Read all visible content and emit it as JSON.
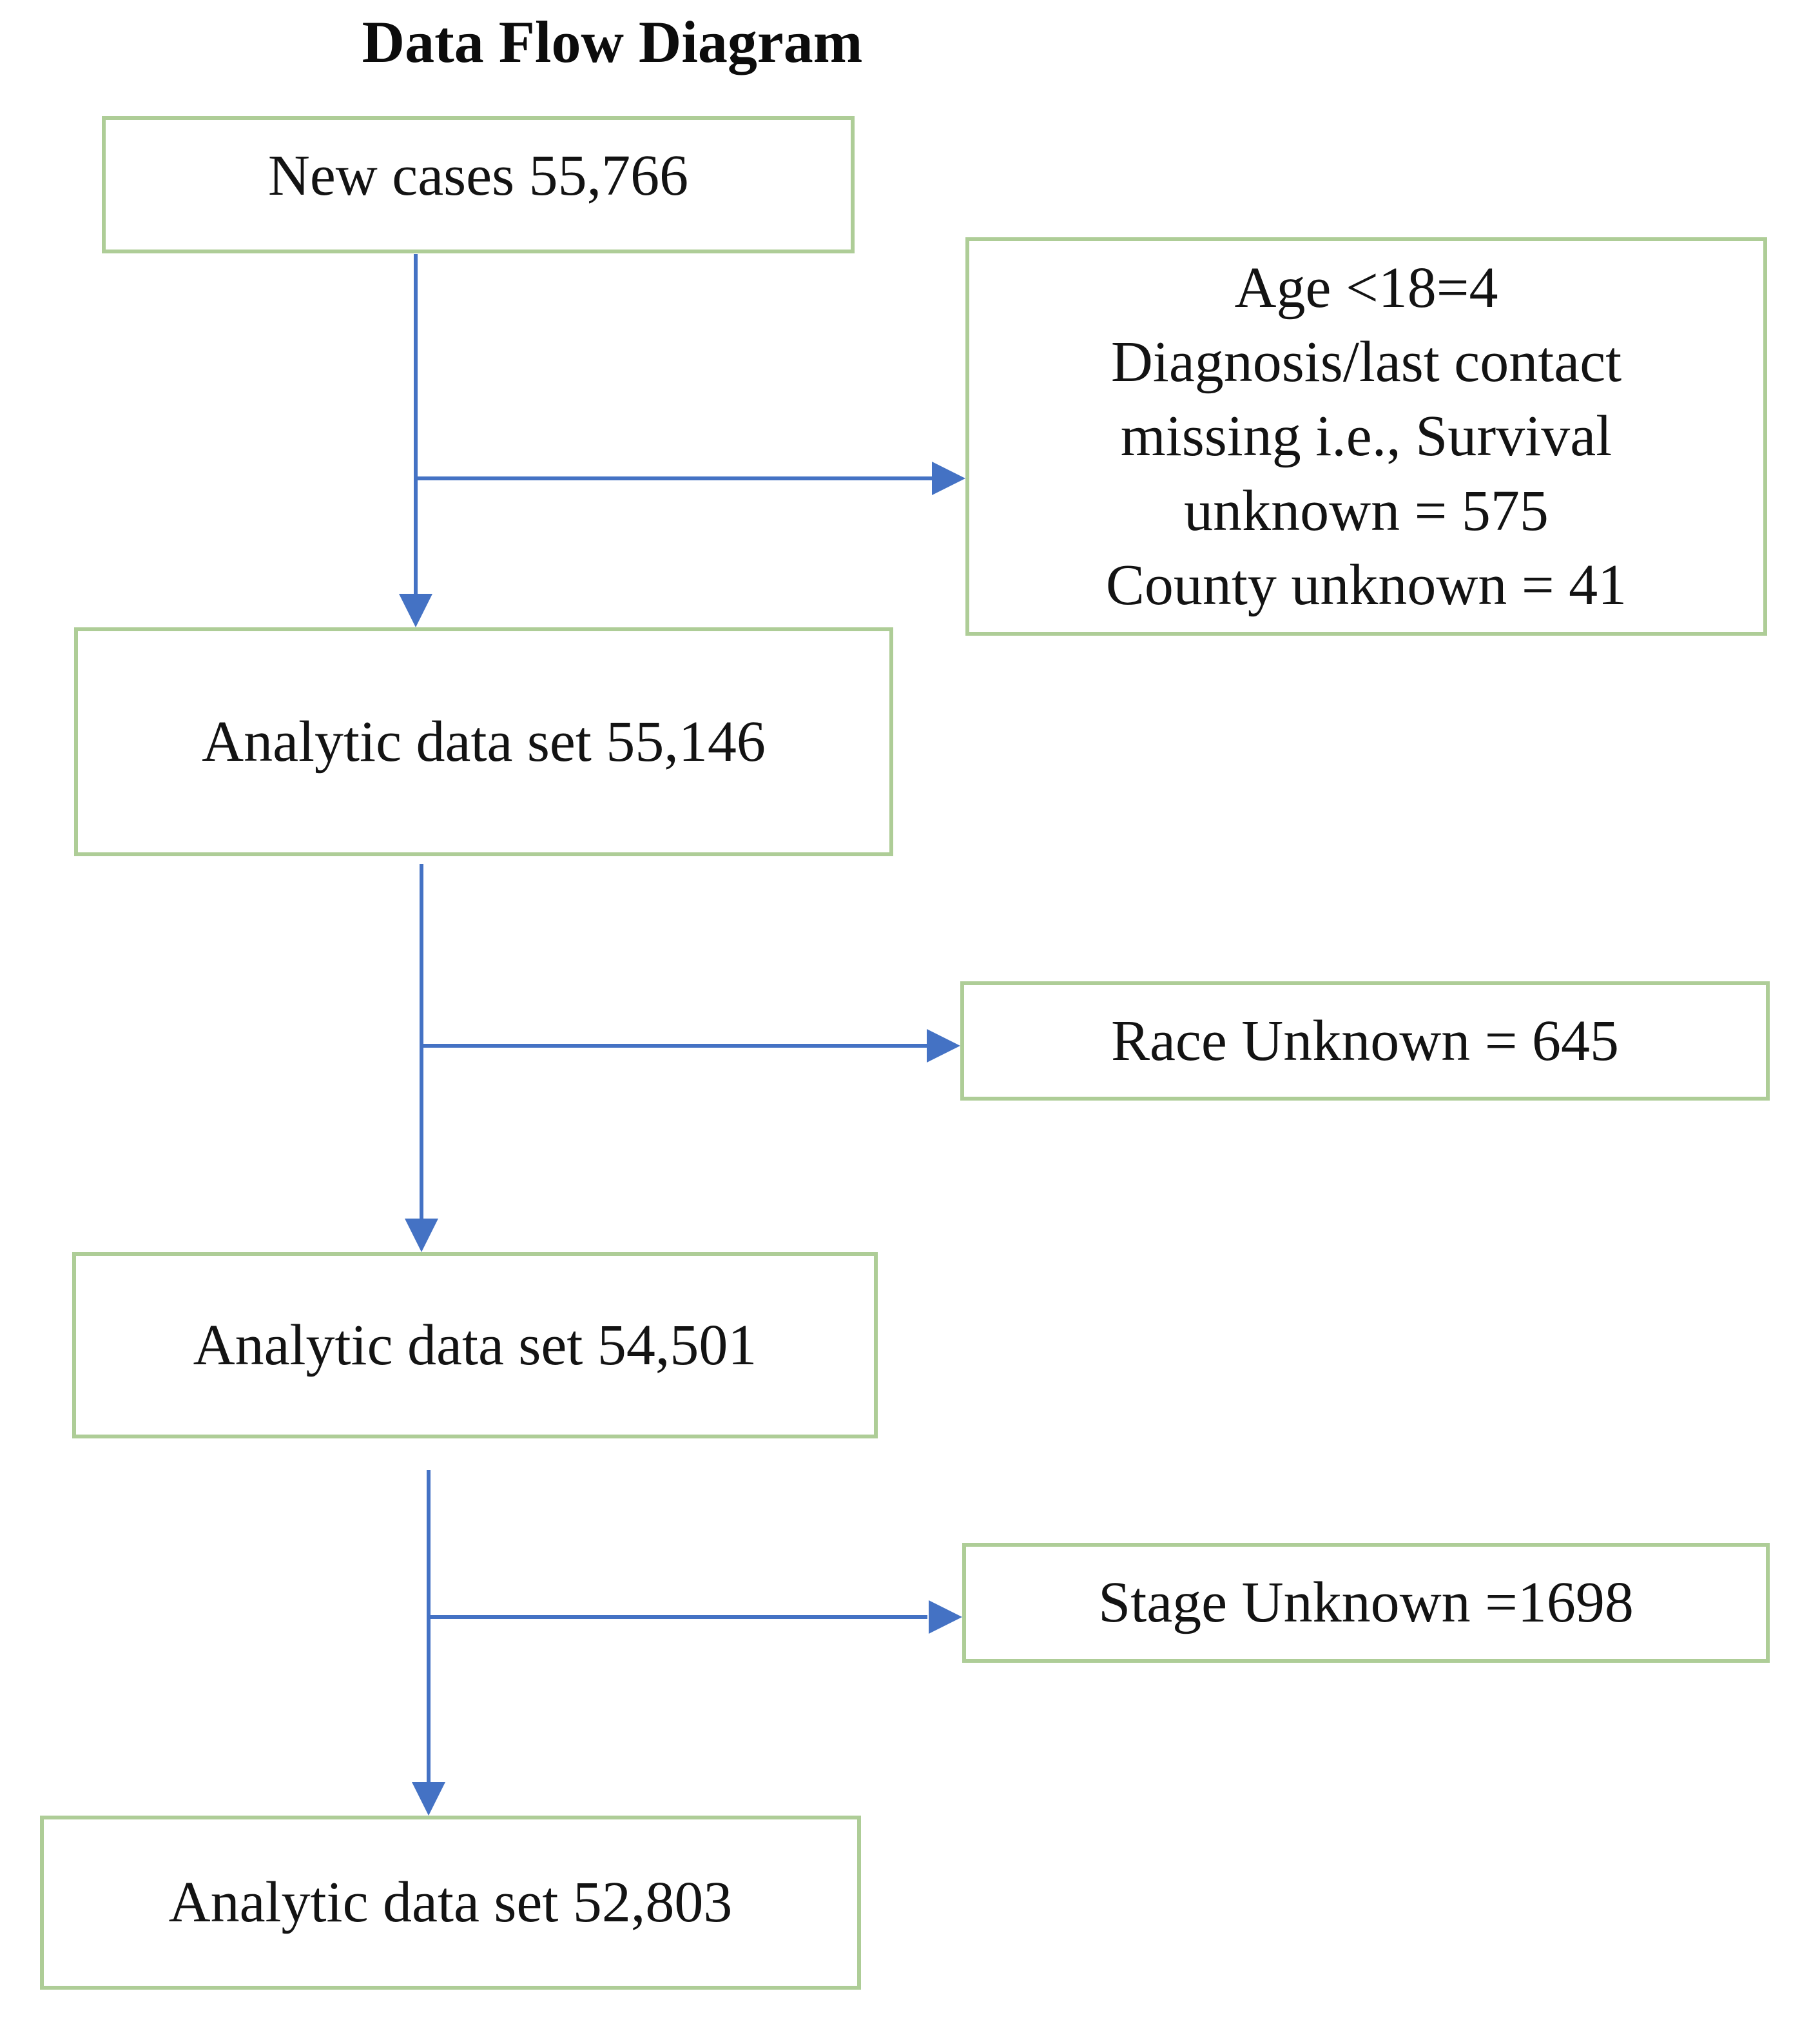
{
  "title": "Data Flow Diagram",
  "colors": {
    "box_border": "#aecd97",
    "arrow": "#4472c4",
    "text": "#131313",
    "background": "#ffffff"
  },
  "flow": {
    "new_cases": {
      "label": "New cases 55,766"
    },
    "exclusion_1": {
      "label": "Age <18=4\nDiagnosis/last contact\nmissing i.e., Survival\nunknown = 575\nCounty unknown = 41"
    },
    "analytic_1": {
      "label": "Analytic data set 55,146"
    },
    "exclusion_race": {
      "label": "Race Unknown = 645"
    },
    "analytic_2": {
      "label": "Analytic data set 54,501"
    },
    "exclusion_stage": {
      "label": "Stage Unknown =1698"
    },
    "analytic_3": {
      "label": "Analytic data set 52,803"
    }
  }
}
